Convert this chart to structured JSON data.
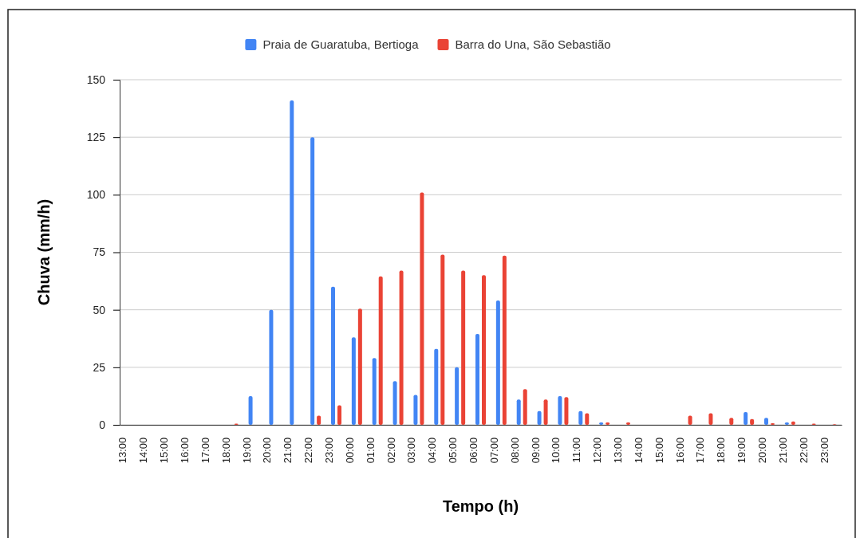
{
  "chart_data": {
    "type": "bar",
    "xlabel": "Tempo (h)",
    "ylabel": "Chuva (mm/h)",
    "categories": [
      "13:00",
      "14:00",
      "15:00",
      "16:00",
      "17:00",
      "18:00",
      "19:00",
      "20:00",
      "21:00",
      "22:00",
      "23:00",
      "00:00",
      "01:00",
      "02:00",
      "03:00",
      "04:00",
      "05:00",
      "06:00",
      "07:00",
      "08:00",
      "09:00",
      "10:00",
      "11:00",
      "12:00",
      "13:00",
      "14:00",
      "15:00",
      "16:00",
      "17:00",
      "18:00",
      "19:00",
      "20:00",
      "21:00",
      "22:00",
      "23:00"
    ],
    "series": [
      {
        "name": "Praia de Guaratuba, Bertioga",
        "color": "#4285f4",
        "values": [
          0,
          0,
          0,
          0,
          0,
          0,
          12.5,
          50,
          141,
          125,
          60,
          38,
          29,
          19,
          13,
          33,
          25,
          39.5,
          54,
          11,
          6,
          12.5,
          6,
          1,
          0,
          0,
          0,
          0,
          0,
          0,
          5.5,
          3,
          1,
          0,
          0
        ]
      },
      {
        "name": "Barra do Una, São Sebastião",
        "color": "#ea4335",
        "values": [
          0,
          0,
          0,
          0,
          0,
          0.5,
          0,
          0,
          0,
          4,
          8.5,
          50.5,
          64.5,
          67,
          101,
          74,
          67,
          65,
          73.5,
          15.5,
          11,
          12,
          5,
          1,
          1,
          0,
          0,
          4,
          5,
          3,
          2.5,
          0.7,
          1.5,
          0.5,
          0.3
        ]
      }
    ],
    "ylim": [
      0,
      150
    ],
    "yticks": [
      0,
      25,
      50,
      75,
      100,
      125,
      150
    ],
    "grid": "y",
    "legend": "top"
  }
}
